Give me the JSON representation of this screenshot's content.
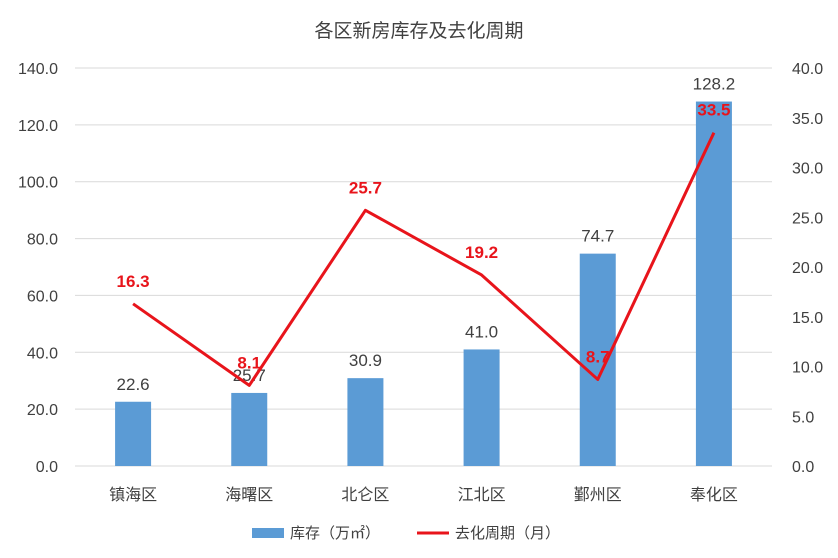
{
  "chart_data": {
    "type": "bar",
    "title": "各区新房库存及去化周期",
    "categories": [
      "镇海区",
      "海曙区",
      "北仑区",
      "江北区",
      "鄞州区",
      "奉化区"
    ],
    "series": [
      {
        "name": "库存（万㎡）",
        "type": "bar",
        "axis": "left",
        "color": "#5b9bd5",
        "values": [
          22.6,
          25.7,
          30.9,
          41.0,
          74.7,
          128.2
        ],
        "labels": [
          "22.6",
          "25.7",
          "30.9",
          "41.0",
          "74.7",
          "128.2"
        ]
      },
      {
        "name": "去化周期（月）",
        "type": "line",
        "axis": "right",
        "color": "#e8141b",
        "values": [
          16.3,
          8.1,
          25.7,
          19.2,
          8.7,
          33.5
        ],
        "labels": [
          "16.3",
          "8.1",
          "25.7",
          "19.2",
          "8.7",
          "33.5"
        ]
      }
    ],
    "y_left": {
      "min": 0,
      "max": 140,
      "ticks": [
        0,
        20,
        40,
        60,
        80,
        100,
        120,
        140
      ],
      "tick_labels": [
        "0.0",
        "20.0",
        "40.0",
        "60.0",
        "80.0",
        "100.0",
        "120.0",
        "140.0"
      ]
    },
    "y_right": {
      "min": 0,
      "max": 40,
      "ticks": [
        0,
        5,
        10,
        15,
        20,
        25,
        30,
        35,
        40
      ],
      "tick_labels": [
        "0.0",
        "5.0",
        "10.0",
        "15.0",
        "20.0",
        "25.0",
        "30.0",
        "35.0",
        "40.0"
      ]
    },
    "grid": true,
    "legend_position": "bottom"
  }
}
